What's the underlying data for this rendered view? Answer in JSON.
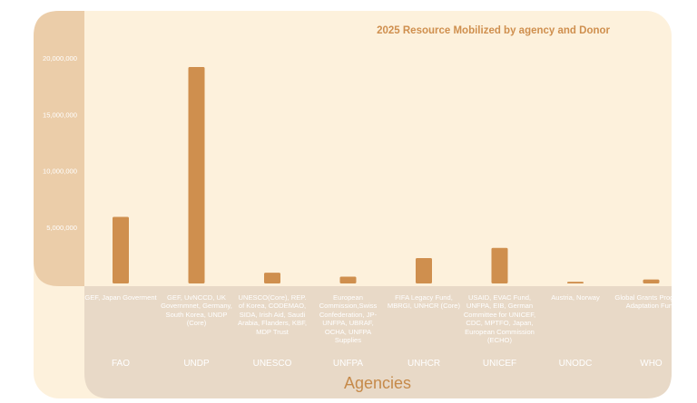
{
  "chart_data": {
    "type": "bar",
    "title": "2025 Resource Mobilized by agency and Donor",
    "xlabel": "Agencies",
    "ylabel": "",
    "ylim": [
      0,
      22000000
    ],
    "yticks": [
      5000000,
      10000000,
      15000000,
      20000000
    ],
    "ytick_labels": [
      "5,000,000",
      "10,000,000",
      "15,000,000",
      "20,000,000"
    ],
    "categories": [
      "FAO",
      "UNDP",
      "UNESCO",
      "UNFPA",
      "UNHCR",
      "UNICEF",
      "UNODC",
      "WHO"
    ],
    "donors": [
      "GEF, Japan Goverment",
      "GEF, UvNCCD, UK Governmnet, Germany, South Korea, UNDP (Core)",
      "UNESCO(Core), REP. of Korea, CODEMAO, SIDA, Irish Aid, Saudi Arabia, Flanders, KBF, MDP Trust",
      "European Commission,Swiss Confederation, JP-UNFPA, UBRAF, OCHA, UNFPA Supplies",
      "FIFA Legacy Fund, MBRGI, UNHCR (Core)",
      "USAID, EVAC Fund, UNFPA, EIB, German Committee for UNICEF, CDC, MPTFO, Japan, European Commission (ECHO)",
      "Austria, Norway",
      "Global Grants Program, Adaptation Fund"
    ],
    "values": [
      5900000,
      19200000,
      950000,
      600000,
      2250000,
      3150000,
      150000,
      350000
    ],
    "grid": false,
    "colors": {
      "bar": "#cf8f4e",
      "plot_bg": "#fdf1dc",
      "axis_bg": "#ebcda9",
      "bottom_bg": "#e8d9c7",
      "text": "#c68a4a"
    }
  }
}
